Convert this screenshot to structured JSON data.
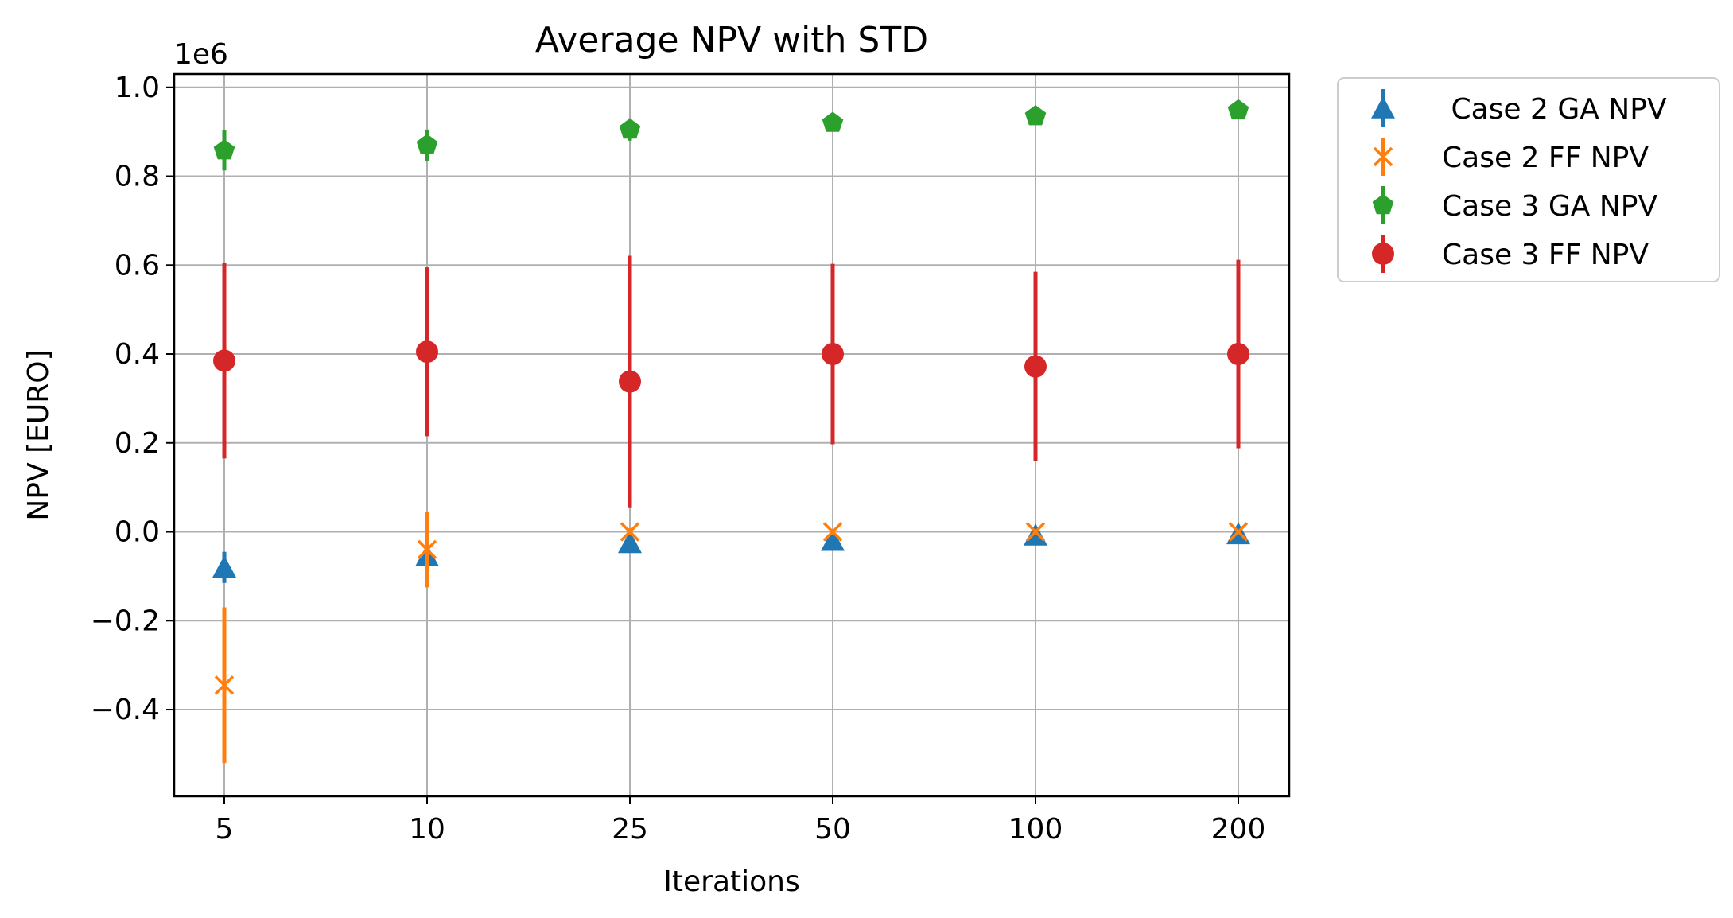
{
  "chart_data": {
    "type": "scatter",
    "title": "Average NPV with STD",
    "xlabel": "Iterations",
    "ylabel": "NPV [EURO]",
    "y_offset_label": "1e6",
    "categories": [
      "5",
      "10",
      "25",
      "50",
      "100",
      "200"
    ],
    "y_ticks": [
      "−0.4",
      "−0.2",
      "0.0",
      "0.2",
      "0.4",
      "0.6",
      "0.8",
      "1.0"
    ],
    "y_tick_values": [
      -0.4,
      -0.2,
      0.0,
      0.2,
      0.4,
      0.6,
      0.8,
      1.0
    ],
    "ylim": [
      -0.595,
      1.03
    ],
    "y_scale": "×1e6",
    "grid": true,
    "legend_position": "outside-top-right",
    "series": [
      {
        "name": " Case 2 GA NPV",
        "marker": "triangle",
        "color": "#1f77b4",
        "values": [
          -0.08,
          -0.055,
          -0.025,
          -0.02,
          -0.008,
          -0.005
        ],
        "std": [
          0.035,
          0.02,
          0.01,
          0.008,
          0.005,
          0.004
        ]
      },
      {
        "name": "Case 2 FF NPV",
        "marker": "x",
        "color": "#ff7f0e",
        "values": [
          -0.345,
          -0.04,
          0.0,
          0.0,
          0.0,
          0.0
        ],
        "std": [
          0.175,
          0.085,
          0.008,
          0.006,
          0.005,
          0.004
        ]
      },
      {
        "name": "Case 3 GA NPV",
        "marker": "pentagon",
        "color": "#2ca02c",
        "values": [
          0.858,
          0.87,
          0.905,
          0.92,
          0.935,
          0.948
        ],
        "std": [
          0.045,
          0.035,
          0.025,
          0.015,
          0.01,
          0.006
        ]
      },
      {
        "name": "Case 3 FF NPV",
        "marker": "circle",
        "color": "#d62728",
        "values": [
          0.385,
          0.405,
          0.338,
          0.4,
          0.372,
          0.4
        ],
        "std": [
          0.22,
          0.19,
          0.283,
          0.203,
          0.213,
          0.212
        ]
      }
    ]
  }
}
